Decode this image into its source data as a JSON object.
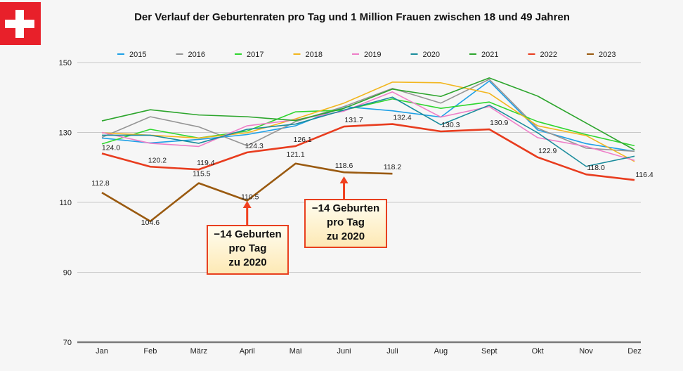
{
  "title": "Der Verlauf der Geburtenraten pro Tag und 1 Million Frauen zwischen 18 und 49 Jahren",
  "flag_icon": "swiss-flag-icon",
  "chart_data": {
    "type": "line",
    "title": "Der Verlauf der Geburtenraten pro Tag und 1 Million Frauen zwischen 18 und 49 Jahren",
    "xlabel": "",
    "ylabel": "",
    "categories": [
      "Jan",
      "Feb",
      "März",
      "April",
      "Mai",
      "Juni",
      "Juli",
      "Aug",
      "Sept",
      "Okt",
      "Nov",
      "Dez"
    ],
    "ylim": [
      70,
      150
    ],
    "yticks": [
      70,
      90,
      110,
      130,
      150
    ],
    "grid": true,
    "legend": "top-center",
    "series": [
      {
        "name": "2015",
        "color": "#1ea0e6",
        "values": [
          128.4,
          127.0,
          128.0,
          129.4,
          131.9,
          137.4,
          136.2,
          134.4,
          144.7,
          130.7,
          126.8,
          124.6
        ]
      },
      {
        "name": "2016",
        "color": "#959595",
        "values": [
          128.6,
          134.5,
          131.6,
          126.2,
          133.1,
          137.4,
          142.6,
          138.4,
          145.2,
          131.2,
          125.5,
          124.6
        ]
      },
      {
        "name": "2017",
        "color": "#2fd62f",
        "values": [
          126.7,
          130.9,
          128.4,
          130.4,
          135.9,
          136.4,
          139.6,
          136.9,
          138.7,
          133.1,
          129.4,
          126.2
        ]
      },
      {
        "name": "2018",
        "color": "#f2b61e",
        "values": [
          129.9,
          129.2,
          128.4,
          129.9,
          133.9,
          138.4,
          144.4,
          144.2,
          141.2,
          131.9,
          129.1,
          121.7
        ]
      },
      {
        "name": "2019",
        "color": "#ee7fc8",
        "values": [
          130.0,
          126.9,
          126.0,
          131.9,
          133.6,
          136.1,
          141.6,
          134.4,
          137.4,
          128.5,
          126.0,
          122.0
        ]
      },
      {
        "name": "2020",
        "color": "#1a8c9c",
        "values": [
          129.2,
          129.2,
          126.9,
          130.9,
          132.4,
          136.4,
          140.1,
          132.2,
          137.8,
          129.9,
          120.3,
          123.2
        ]
      },
      {
        "name": "2021",
        "color": "#2ca52c",
        "values": [
          133.3,
          136.5,
          135.0,
          134.5,
          133.4,
          136.9,
          142.4,
          140.3,
          145.6,
          140.4,
          132.7,
          125.0
        ]
      },
      {
        "name": "2022",
        "color": "#e83c1e",
        "values": [
          124.0,
          120.2,
          119.4,
          124.3,
          126.1,
          131.7,
          132.4,
          130.3,
          130.9,
          122.9,
          118.0,
          116.4
        ]
      },
      {
        "name": "2023",
        "color": "#9a5a10",
        "values": [
          112.8,
          104.6,
          115.5,
          110.5,
          121.1,
          118.6,
          118.2
        ]
      }
    ],
    "data_labels": [
      {
        "series": "2022",
        "values": [
          "124.0",
          "120.2",
          "119.4",
          "124.3",
          "126.1",
          "131.7",
          "132.4",
          "130.3",
          "130.9",
          "122.9",
          "118.0",
          "116.4"
        ]
      },
      {
        "series": "2023",
        "values": [
          "112.8",
          "104.6",
          "115.5",
          "110.5",
          "121.1",
          "118.6",
          "118.2"
        ]
      }
    ],
    "annotations": [
      {
        "month": "April",
        "text": [
          "−14 Geburten",
          "pro Tag",
          "zu 2020"
        ]
      },
      {
        "month": "Juni",
        "text": [
          "−14 Geburten",
          "pro Tag",
          "zu 2020"
        ]
      }
    ]
  }
}
